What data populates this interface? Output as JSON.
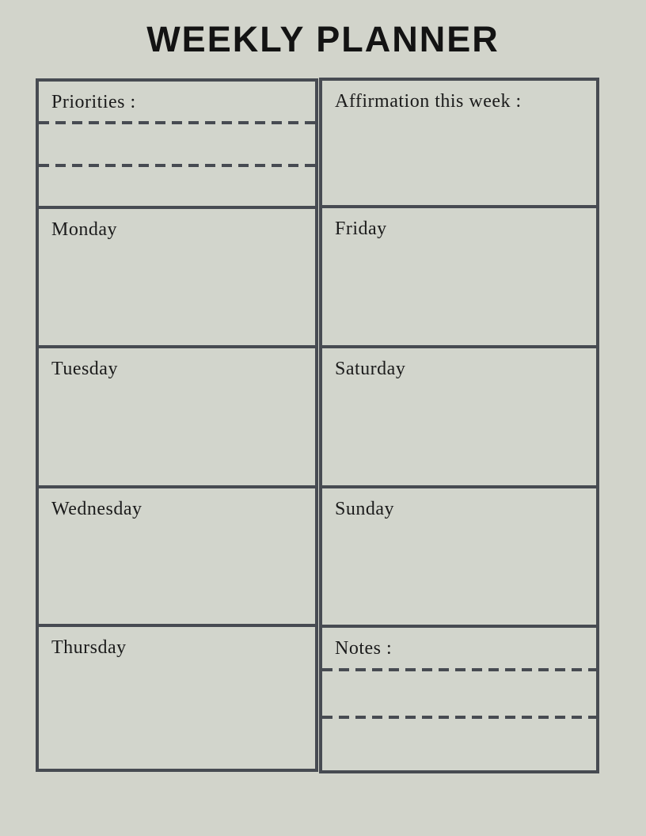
{
  "colors": {
    "page-bg": "#d2d4cb",
    "cell-bg": "#d2d5cc",
    "border": "#474b52",
    "title": "#131313",
    "label": "#1b1b1b"
  },
  "title": "WEEKLY PLANNER",
  "planner": {
    "left_column": [
      {
        "label": "Priorities :",
        "writing_lines": 2
      },
      {
        "label": "Monday",
        "writing_lines": 0
      },
      {
        "label": "Tuesday",
        "writing_lines": 0
      },
      {
        "label": "Wednesday",
        "writing_lines": 0
      },
      {
        "label": "Thursday",
        "writing_lines": 0
      }
    ],
    "right_column": [
      {
        "label": "Affirmation this week :",
        "writing_lines": 0
      },
      {
        "label": "Friday",
        "writing_lines": 0
      },
      {
        "label": "Saturday",
        "writing_lines": 0
      },
      {
        "label": "Sunday",
        "writing_lines": 0
      },
      {
        "label": "Notes :",
        "writing_lines": 2
      }
    ]
  }
}
